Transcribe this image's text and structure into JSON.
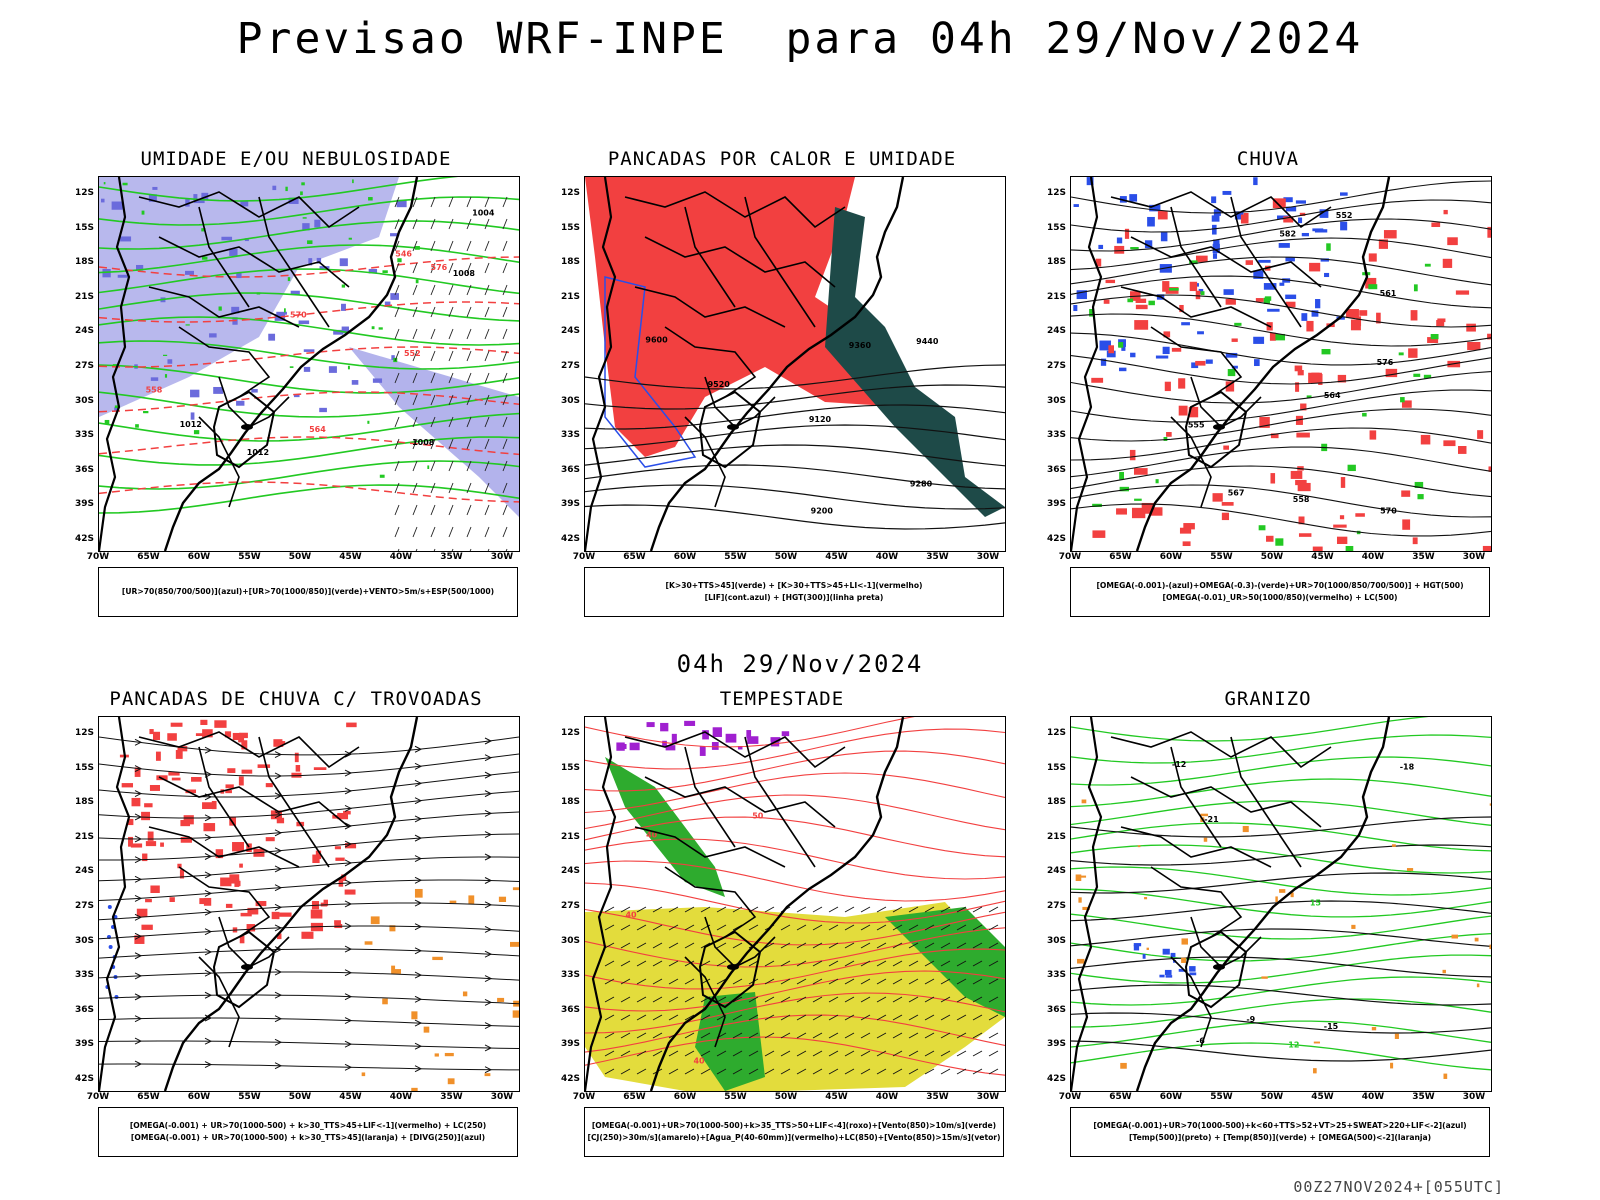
{
  "header": {
    "title": "Previsao WRF-INPE  para 04h 29/Nov/2024",
    "middle_title": "04h 29/Nov/2024",
    "footer": "00Z27NOV2024+[055UTC]"
  },
  "axes": {
    "lat_labels": [
      "12S",
      "15S",
      "18S",
      "21S",
      "24S",
      "27S",
      "30S",
      "33S",
      "36S",
      "39S",
      "42S"
    ],
    "lon_labels": [
      "70W",
      "65W",
      "60W",
      "55W",
      "50W",
      "45W",
      "40W",
      "35W",
      "30W"
    ]
  },
  "colors": {
    "blue_shade": "#9a9ae6",
    "green_contour": "#22c922",
    "red_fill": "#f24040",
    "dark_teal": "#1e4a48",
    "yellow_fill": "#e3dc3c",
    "purple_fill": "#a020d0",
    "orange_fill": "#f0902a",
    "blue_fill": "#2a4ee8"
  },
  "panels": [
    {
      "title": "UMIDADE E/OU NEBULOSIDADE",
      "legend": [
        "[UR>70(850/700/500)](azul)+[UR>70(1000/850)](verde)+VENTO>5m/s+ESP(500/1000)"
      ],
      "contour_labels": [
        "1008",
        "1012",
        "1004",
        "1008",
        "1012",
        "576",
        "570",
        "564",
        "558",
        "552",
        "546"
      ]
    },
    {
      "title": "PANCADAS POR CALOR E UMIDADE",
      "legend": [
        "[K>30+TTS>45](verde) + [K>30+TTS>45+LI<-1](vermelho)",
        "[LIF](cont.azul) + [HGT(300)](linha preta)"
      ],
      "contour_labels": [
        "9600",
        "9520",
        "9440",
        "9360",
        "9280",
        "9200",
        "9120"
      ]
    },
    {
      "title": "CHUVA",
      "legend": [
        "[OMEGA(-0.001)-(azul)+OMEGA(-0.3)-(verde)+UR>70(1000/850/700/500)] + HGT(500)",
        "[OMEGA(-0.01)_UR>50(1000/850)(vermelho) + LC(500)"
      ],
      "contour_labels": [
        "582",
        "576",
        "570",
        "567",
        "564",
        "561",
        "558",
        "555",
        "552"
      ]
    },
    {
      "title": "PANCADAS DE CHUVA C/ TROVOADAS",
      "legend": [
        "[OMEGA(-0.001) + UR>70(1000-500) + k>30_TTS>45+LIF<-1](vermelho) + LC(250)",
        "[OMEGA(-0.001) + UR>70(1000-500) + k>30_TTS>45](laranja) + [DIVG(250)](azul)"
      ],
      "contour_labels": []
    },
    {
      "title": "TEMPESTADE",
      "legend": [
        "[OMEGA(-0.001)+UR>70(1000-500)+k>35_TTS>50+LIF<-4](roxo)+[Vento(850)>10m/s](verde)",
        "[CJ(250)>30m/s](amarelo)+[Agua_P(40-60mm)](vermelho)+LC(850)+[Vento(850)>15m/s](vetor)"
      ],
      "contour_labels": [
        "40",
        "40",
        "50",
        "40"
      ]
    },
    {
      "title": "GRANIZO",
      "legend": [
        "[OMEGA(-0.001)+UR>70(1000-500)+k<60+TTS>52+VT>25+SWEAT>220+LIF<-2](azul)",
        "[Temp(500)](preto) + [Temp(850)](verde) + [OMEGA(500)<-2](laranja)"
      ],
      "contour_labels": [
        "-6",
        "-9",
        "-12",
        "-15",
        "-18",
        "-21",
        "12",
        "15"
      ]
    }
  ]
}
